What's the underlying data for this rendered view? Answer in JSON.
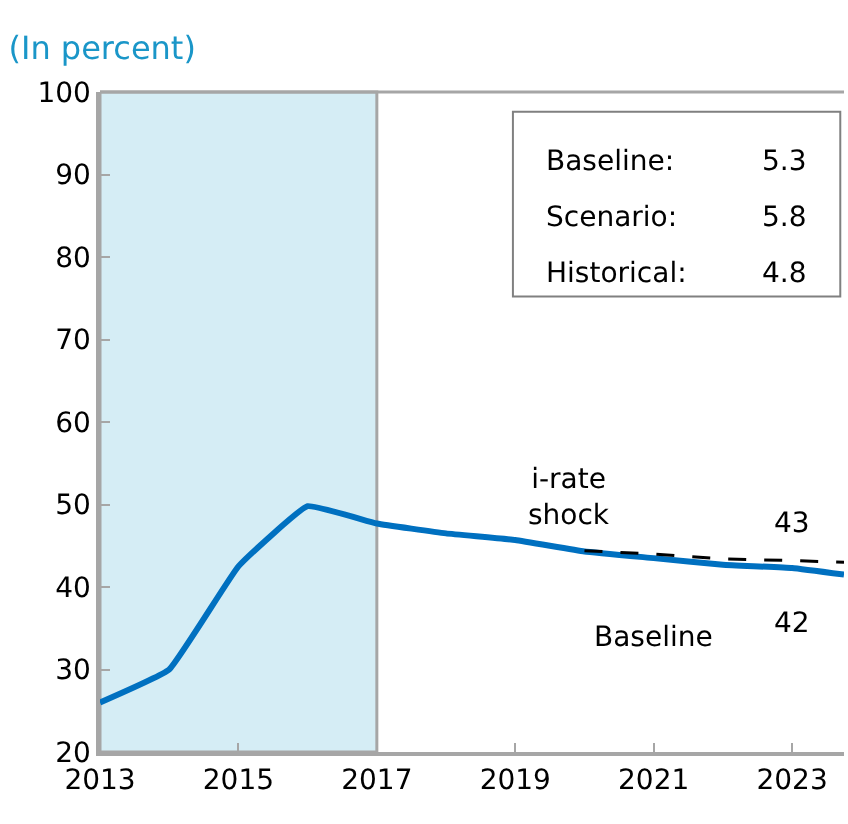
{
  "chart_data": {
    "type": "line",
    "title": "(In percent)",
    "xlim": [
      2013,
      2023.75
    ],
    "xticks": [
      2013,
      2015,
      2017,
      2019,
      2021,
      2023
    ],
    "ylim": [
      20,
      100
    ],
    "yticks": [
      20,
      30,
      40,
      50,
      60,
      70,
      80,
      90,
      100
    ],
    "grid": false,
    "legend": false,
    "marker": "none",
    "series": [
      {
        "name": "Baseline",
        "color": "#0070c0",
        "line_style": "solid",
        "x": [
          2013,
          2014,
          2015,
          2016,
          2017,
          2018,
          2019,
          2020,
          2021,
          2022,
          2023,
          2023.75
        ],
        "values": [
          26,
          30,
          42.5,
          49.8,
          47.7,
          46.5,
          45.7,
          44.3,
          43.5,
          42.7,
          42.3,
          41.5
        ]
      },
      {
        "name": "i-rate\nshock",
        "color": "#000000",
        "line_style": "dashed",
        "x": [
          2020,
          2021,
          2022,
          2023,
          2023.75
        ],
        "values": [
          44.4,
          44.0,
          43.4,
          43.2,
          43.0
        ]
      }
    ],
    "bands": [
      {
        "axis": "x",
        "from": 2013,
        "to": 2017,
        "color": "#d5edf5"
      }
    ],
    "annotations": [
      {
        "text": "43",
        "x": 2023,
        "y": 43.2
      },
      {
        "text": "42",
        "x": 2023,
        "y": 42.3
      },
      "Baseline:",
      "5.3",
      "Scenario:",
      "5.8",
      "Historical:",
      "4.8"
    ]
  }
}
